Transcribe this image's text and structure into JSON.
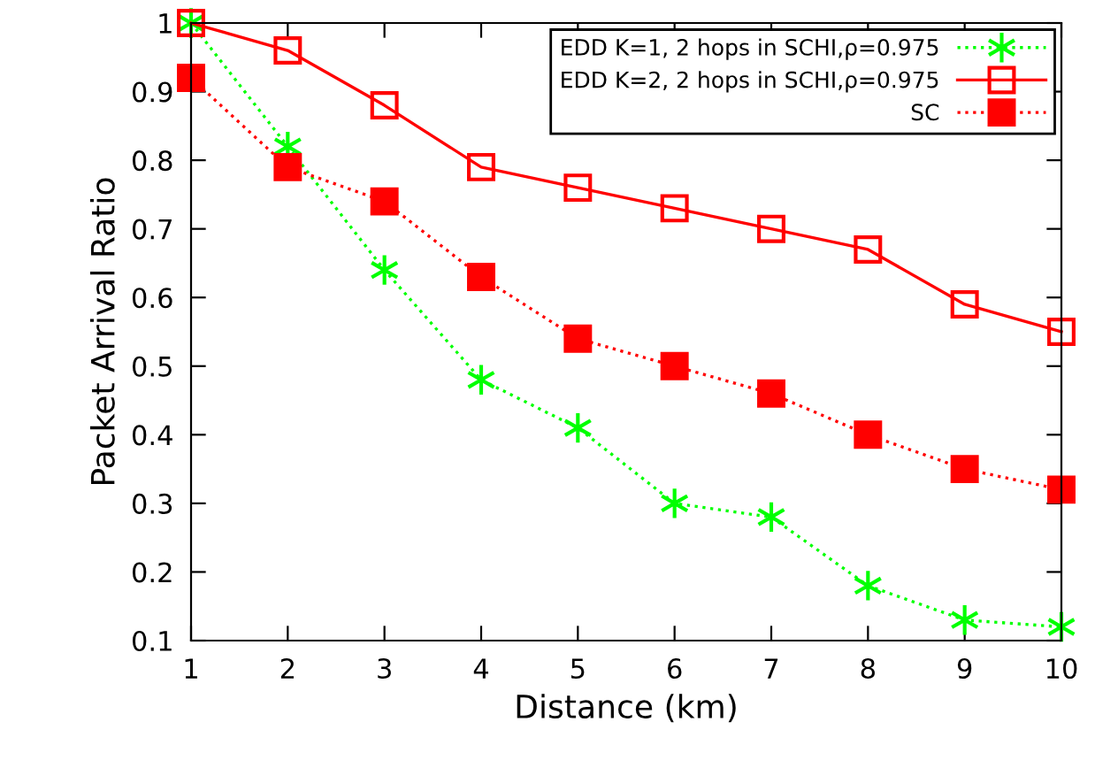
{
  "chart_data": {
    "type": "line",
    "xlabel": "Distance (km)",
    "ylabel": "Packet Arrival Ratio",
    "x": [
      1,
      2,
      3,
      4,
      5,
      6,
      7,
      8,
      9,
      10
    ],
    "series": [
      {
        "name": "EDD K=1, 2 hops in SCHI,ρ=0.975",
        "color": "#00ff00",
        "marker": "cross",
        "line_style": "dotted",
        "values": [
          1.0,
          0.82,
          0.64,
          0.48,
          0.41,
          0.3,
          0.28,
          0.18,
          0.13,
          0.12
        ]
      },
      {
        "name": "EDD K=2, 2 hops in SCHI,ρ=0.975",
        "color": "#ff0000",
        "marker": "square",
        "line_style": "solid",
        "values": [
          1.0,
          0.96,
          0.88,
          0.79,
          0.76,
          0.73,
          0.7,
          0.67,
          0.59,
          0.55
        ]
      },
      {
        "name": "SC",
        "color": "#ff0000",
        "marker": "square",
        "line_style": "dotted",
        "values": [
          0.92,
          0.79,
          0.74,
          0.63,
          0.54,
          0.5,
          0.46,
          0.4,
          0.35,
          0.32
        ]
      }
    ],
    "xlim": [
      1,
      10
    ],
    "xticks": [
      1,
      2,
      3,
      4,
      5,
      6,
      7,
      8,
      9,
      10
    ],
    "ylim": [
      0.1,
      1
    ],
    "yticks": [
      0.1,
      0.2,
      0.3,
      0.4,
      0.5,
      0.6,
      0.7,
      0.8,
      0.9,
      1
    ],
    "grid": false,
    "legend": "top right"
  }
}
